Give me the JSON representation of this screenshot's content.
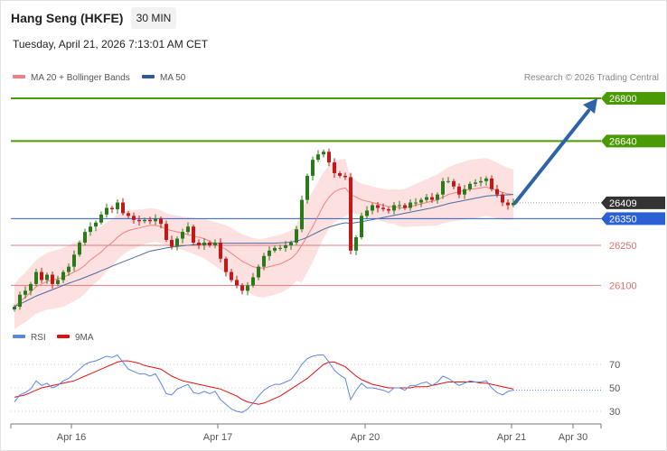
{
  "header": {
    "instrument": "Hang Seng (HKFE)",
    "timeframe": "30 MIN",
    "datetime": "Tuesday, April 21, 2026 7:13:01 AM CET"
  },
  "legend": {
    "ma20_label": "MA 20 + Bollinger Bands",
    "ma50_label": "MA 50",
    "credit": "Research © 2026 Trading Central",
    "rsi_label": "RSI",
    "rsi_ma_label": "9MA"
  },
  "colors": {
    "green": "#4a9a06",
    "blue": "#2a5fd6",
    "red": "#e07070",
    "candle_up": "#2a7a1a",
    "candle_down": "#c21818",
    "band_fill": "#fde0e0",
    "ma20": "#f08080",
    "ma50": "#4a6aa8",
    "arrow": "#2f63a8",
    "last_price_bg": "#333333",
    "rsi": "#5b86e5",
    "rsi_ma": "#e01010"
  },
  "chart_data": {
    "type": "candlestick",
    "ylim": [
      26000,
      26860
    ],
    "x_ticks": [
      "Apr 16",
      "Apr 17",
      "Apr 20",
      "Apr 21",
      "Apr 30"
    ],
    "levels": [
      {
        "value": 26800,
        "label": "26800",
        "kind": "resistance"
      },
      {
        "value": 26640,
        "label": "26640",
        "kind": "resistance"
      },
      {
        "value": 26409,
        "label": "26409",
        "kind": "last"
      },
      {
        "value": 26350,
        "label": "26350",
        "kind": "pivot"
      },
      {
        "value": 26250,
        "label": "26250",
        "kind": "support"
      },
      {
        "value": 26100,
        "label": "26100",
        "kind": "support"
      }
    ],
    "closes": [
      26020,
      26065,
      26080,
      26105,
      26150,
      26120,
      26140,
      26105,
      26120,
      26150,
      26170,
      26215,
      26260,
      26300,
      26320,
      26335,
      26365,
      26390,
      26385,
      26410,
      26370,
      26360,
      26345,
      26340,
      26345,
      26340,
      26350,
      26330,
      26270,
      26245,
      26275,
      26300,
      26320,
      26260,
      26250,
      26260,
      26250,
      26260,
      26200,
      26150,
      26120,
      26100,
      26080,
      26100,
      26130,
      26170,
      26210,
      26230,
      26240,
      26240,
      26250,
      26260,
      26310,
      26420,
      26510,
      26570,
      26590,
      26600,
      26560,
      26520,
      26510,
      26505,
      26230,
      26280,
      26360,
      26380,
      26400,
      26390,
      26385,
      26380,
      26400,
      26400,
      26390,
      26410,
      26410,
      26420,
      26430,
      26420,
      26440,
      26490,
      26490,
      26470,
      26440,
      26460,
      26480,
      26485,
      26490,
      26500,
      26460,
      26440,
      26410,
      26400,
      26409
    ],
    "ma20": [
      26020,
      26040,
      26055,
      26075,
      26095,
      26105,
      26115,
      26120,
      26125,
      26130,
      26140,
      26150,
      26160,
      26175,
      26195,
      26210,
      26225,
      26245,
      26260,
      26280,
      26295,
      26305,
      26310,
      26315,
      26320,
      26325,
      26325,
      26320,
      26310,
      26305,
      26300,
      26295,
      26290,
      26285,
      26280,
      26275,
      26265,
      26255,
      26245,
      26235,
      26220,
      26205,
      26190,
      26180,
      26170,
      26165,
      26165,
      26170,
      26175,
      26180,
      26190,
      26200,
      26220,
      26250,
      26285,
      26320,
      26360,
      26400,
      26430,
      26450,
      26460,
      26465,
      26440,
      26430,
      26420,
      26415,
      26410,
      26405,
      26400,
      26395,
      26395,
      26390,
      26390,
      26395,
      26400,
      26405,
      26410,
      26415,
      26420,
      26430,
      26440,
      26445,
      26450,
      26455,
      26460,
      26462,
      26465,
      26468,
      26462,
      26455,
      26448,
      26442,
      26440
    ],
    "ma50": [
      26020,
      26030,
      26040,
      26050,
      26060,
      26068,
      26076,
      26084,
      26092,
      26100,
      26108,
      26115,
      26122,
      26130,
      26138,
      26146,
      26155,
      26163,
      26172,
      26180,
      26188,
      26196,
      26204,
      26212,
      26220,
      26228,
      26232,
      26236,
      26240,
      26243,
      26246,
      26248,
      26250,
      26252,
      26254,
      26255,
      26256,
      26257,
      26258,
      26258,
      26258,
      26258,
      26258,
      26258,
      26258,
      26258,
      26258,
      26258,
      26258,
      26259,
      26260,
      26262,
      26266,
      26272,
      26280,
      26290,
      26300,
      26310,
      26318,
      26324,
      26330,
      26334,
      26332,
      26335,
      26338,
      26342,
      26346,
      26350,
      26354,
      26358,
      26362,
      26366,
      26370,
      26374,
      26378,
      26382,
      26386,
      26390,
      26395,
      26400,
      26406,
      26410,
      26414,
      26418,
      26422,
      26426,
      26430,
      26434,
      26436,
      26437,
      26438,
      26439,
      26440
    ]
  },
  "rsi_data": {
    "ticks": [
      "70",
      "50",
      "30"
    ],
    "rsi": [
      38,
      44,
      46,
      49,
      56,
      52,
      54,
      50,
      52,
      56,
      58,
      62,
      66,
      70,
      72,
      73,
      75,
      77,
      76,
      78,
      72,
      66,
      64,
      62,
      62,
      60,
      62,
      54,
      45,
      44,
      49,
      51,
      53,
      46,
      45,
      47,
      45,
      47,
      40,
      36,
      32,
      30,
      29,
      32,
      37,
      43,
      48,
      51,
      53,
      53,
      55,
      57,
      63,
      70,
      75,
      77,
      78,
      78,
      72,
      65,
      61,
      58,
      40,
      48,
      54,
      50,
      50,
      49,
      48,
      46,
      50,
      50,
      48,
      52,
      52,
      54,
      55,
      52,
      55,
      60,
      58,
      55,
      52,
      54,
      56,
      55,
      55,
      56,
      50,
      46,
      44,
      47,
      48
    ],
    "rsi_ma": [
      42,
      43,
      44,
      46,
      48,
      50,
      51,
      52,
      53,
      54,
      55,
      56,
      58,
      60,
      62,
      64,
      66,
      68,
      70,
      72,
      73,
      73,
      72,
      71,
      69,
      68,
      67,
      66,
      63,
      60,
      58,
      56,
      55,
      54,
      53,
      52,
      51,
      50,
      49,
      47,
      45,
      43,
      40,
      38,
      37,
      36,
      37,
      39,
      41,
      43,
      46,
      49,
      52,
      55,
      58,
      62,
      66,
      70,
      72,
      72,
      70,
      68,
      64,
      60,
      57,
      55,
      53,
      52,
      51,
      50,
      50,
      50,
      50,
      50,
      51,
      51,
      51,
      52,
      53,
      54,
      55,
      55,
      55,
      55,
      55,
      55,
      54,
      54,
      53,
      52,
      51,
      50,
      49
    ]
  }
}
